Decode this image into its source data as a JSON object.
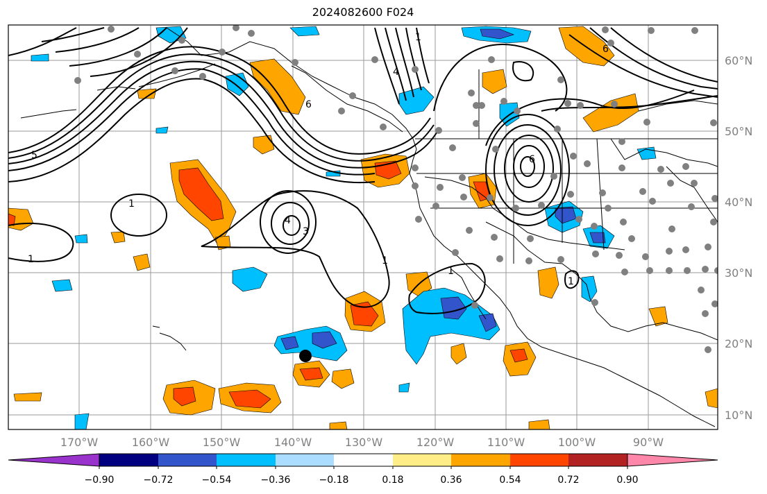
{
  "title": "2024082600 F024",
  "map": {
    "lon_labels": [
      "170°W",
      "160°W",
      "150°W",
      "140°W",
      "130°W",
      "120°W",
      "110°W",
      "100°W",
      "90°W"
    ],
    "lat_labels": [
      "60°N",
      "50°N",
      "40°N",
      "30°N",
      "20°N",
      "10°N"
    ],
    "contour_labels": [
      "5",
      "6",
      "1",
      "4",
      "3",
      "1",
      "1",
      "6",
      "1",
      "1",
      "6",
      "4",
      "1"
    ]
  },
  "colorbar": {
    "colors": [
      "#9933cc",
      "#000080",
      "#3355cc",
      "#00bfff",
      "#aaddff",
      "#ffffff",
      "#ffee88",
      "#ffa500",
      "#ff4500",
      "#b22222",
      "#ff88aa"
    ],
    "tick_labels": [
      "−0.90",
      "−0.72",
      "−0.54",
      "−0.36",
      "−0.18",
      "0.18",
      "0.36",
      "0.54",
      "0.72",
      "0.90"
    ]
  }
}
